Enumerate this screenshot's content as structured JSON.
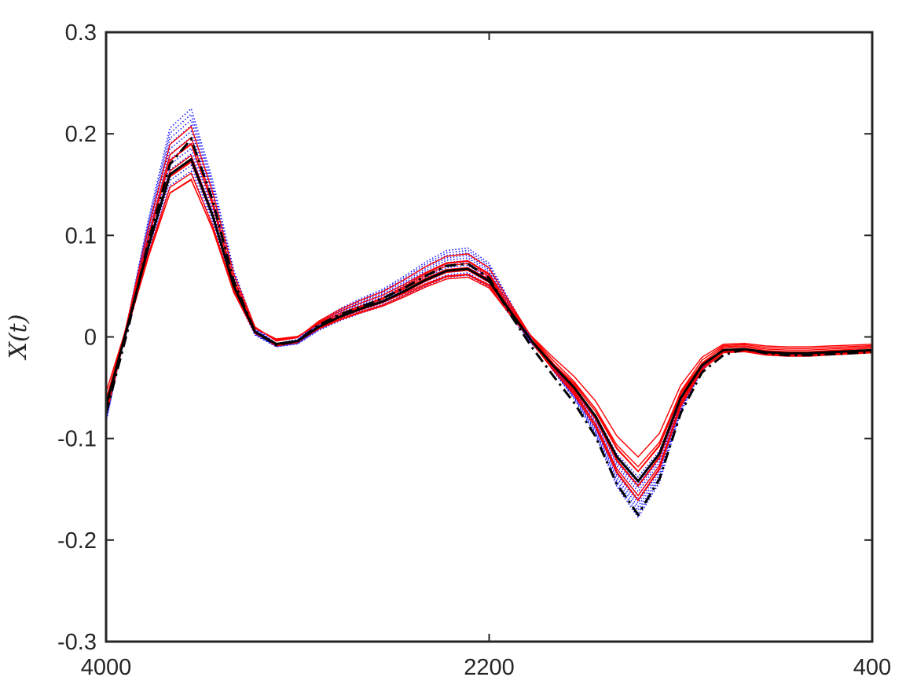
{
  "chart_data": {
    "type": "line",
    "title": "",
    "xlabel": "",
    "ylabel": "X(t)",
    "xlim": [
      4000,
      400
    ],
    "x_reversed": true,
    "ylim": [
      -0.3,
      0.3
    ],
    "x_ticks": [
      4000,
      2200,
      400
    ],
    "x_tick_labels": [
      "4000",
      "2200",
      "400"
    ],
    "y_ticks": [
      -0.3,
      -0.2,
      -0.1,
      0,
      0.1,
      0.2,
      0.3
    ],
    "y_tick_labels": [
      "-0.3",
      "-0.2",
      "-0.1",
      "0",
      "0.1",
      "0.2",
      "0.3"
    ],
    "grid": false,
    "legend": "none",
    "x": [
      4000,
      3900,
      3800,
      3700,
      3600,
      3500,
      3400,
      3300,
      3200,
      3100,
      3000,
      2900,
      2800,
      2700,
      2600,
      2500,
      2400,
      2300,
      2200,
      2100,
      2000,
      1900,
      1800,
      1700,
      1600,
      1500,
      1400,
      1300,
      1200,
      1100,
      1000,
      900,
      800,
      700,
      600,
      500,
      400
    ],
    "series": [
      {
        "style": "solid",
        "color": "#000000",
        "width": 3,
        "values": [
          -0.068,
          0.01,
          0.09,
          0.16,
          0.175,
          0.12,
          0.05,
          0.005,
          -0.007,
          -0.004,
          0.01,
          0.02,
          0.028,
          0.035,
          0.045,
          0.056,
          0.065,
          0.067,
          0.055,
          0.025,
          -0.004,
          -0.028,
          -0.05,
          -0.078,
          -0.118,
          -0.142,
          -0.115,
          -0.06,
          -0.028,
          -0.013,
          -0.012,
          -0.015,
          -0.016,
          -0.016,
          -0.015,
          -0.014,
          -0.013
        ]
      },
      {
        "style": "dashdot",
        "color": "#000000",
        "width": 3,
        "values": [
          -0.075,
          0.005,
          0.095,
          0.17,
          0.195,
          0.135,
          0.055,
          0.005,
          -0.008,
          -0.004,
          0.012,
          0.022,
          0.03,
          0.038,
          0.048,
          0.06,
          0.07,
          0.072,
          0.058,
          0.022,
          -0.01,
          -0.038,
          -0.065,
          -0.098,
          -0.145,
          -0.175,
          -0.14,
          -0.075,
          -0.035,
          -0.018,
          -0.012,
          -0.016,
          -0.018,
          -0.018,
          -0.017,
          -0.016,
          -0.015
        ]
      }
    ],
    "red_band_count": 10,
    "blue_band_count": 12
  }
}
